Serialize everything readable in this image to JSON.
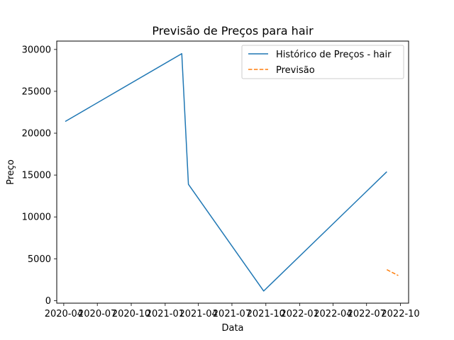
{
  "chart_data": {
    "type": "line",
    "title": "Previsão de Preços para hair",
    "xlabel": "Data",
    "ylabel": "Preço",
    "x_ticks": [
      "2020-04",
      "2020-07",
      "2020-10",
      "2021-01",
      "2021-04",
      "2021-07",
      "2021-10",
      "2022-01",
      "2022-04",
      "2022-07",
      "2022-10"
    ],
    "y_ticks": [
      0,
      5000,
      10000,
      15000,
      20000,
      25000,
      30000
    ],
    "xlim": [
      "2020-03-13",
      "2022-10-23"
    ],
    "ylim": [
      -300,
      31000
    ],
    "legend_position": "upper right",
    "series": [
      {
        "name": "Histórico de Preços - hair",
        "color": "#1f77b4",
        "style": "solid",
        "points": [
          {
            "x": "2020-04-05",
            "y": 21400
          },
          {
            "x": "2021-02-15",
            "y": 29500
          },
          {
            "x": "2021-03-05",
            "y": 13900
          },
          {
            "x": "2021-09-25",
            "y": 1150
          },
          {
            "x": "2022-08-25",
            "y": 15400
          }
        ]
      },
      {
        "name": "Previsão",
        "color": "#ff7f0e",
        "style": "dashed",
        "points": [
          {
            "x": "2022-08-25",
            "y": 3700
          },
          {
            "x": "2022-09-25",
            "y": 3000
          }
        ]
      }
    ]
  }
}
